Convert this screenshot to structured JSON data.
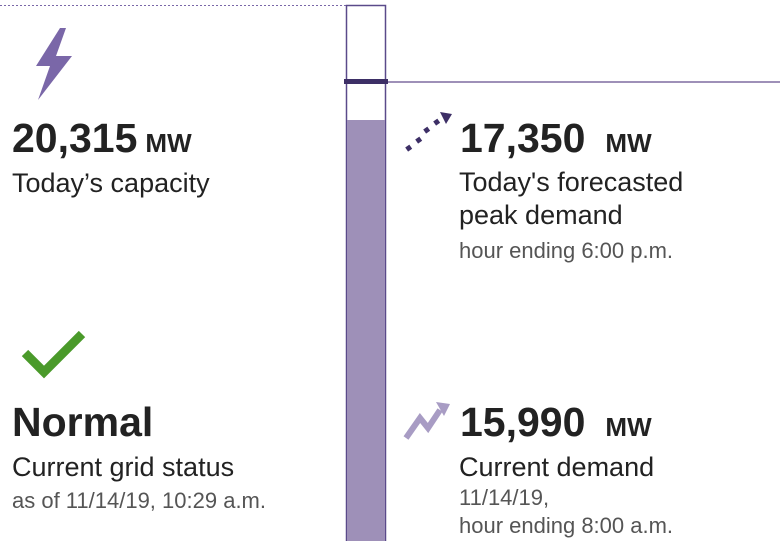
{
  "capacity": {
    "value": "20,315",
    "unit": "MW",
    "label": "Today’s capacity"
  },
  "forecast": {
    "value": "17,350",
    "unit": "MW",
    "label": "Today's forecasted peak demand",
    "note": "hour ending 6:00 p.m."
  },
  "status": {
    "value": "Normal",
    "label": "Current grid status",
    "note": "as of 11/14/19, 10:29 a.m."
  },
  "current": {
    "value": "15,990",
    "unit": "MW",
    "label": "Current demand",
    "note_lines": [
      "11/14/19,",
      "hour ending 8:00 a.m."
    ]
  }
}
